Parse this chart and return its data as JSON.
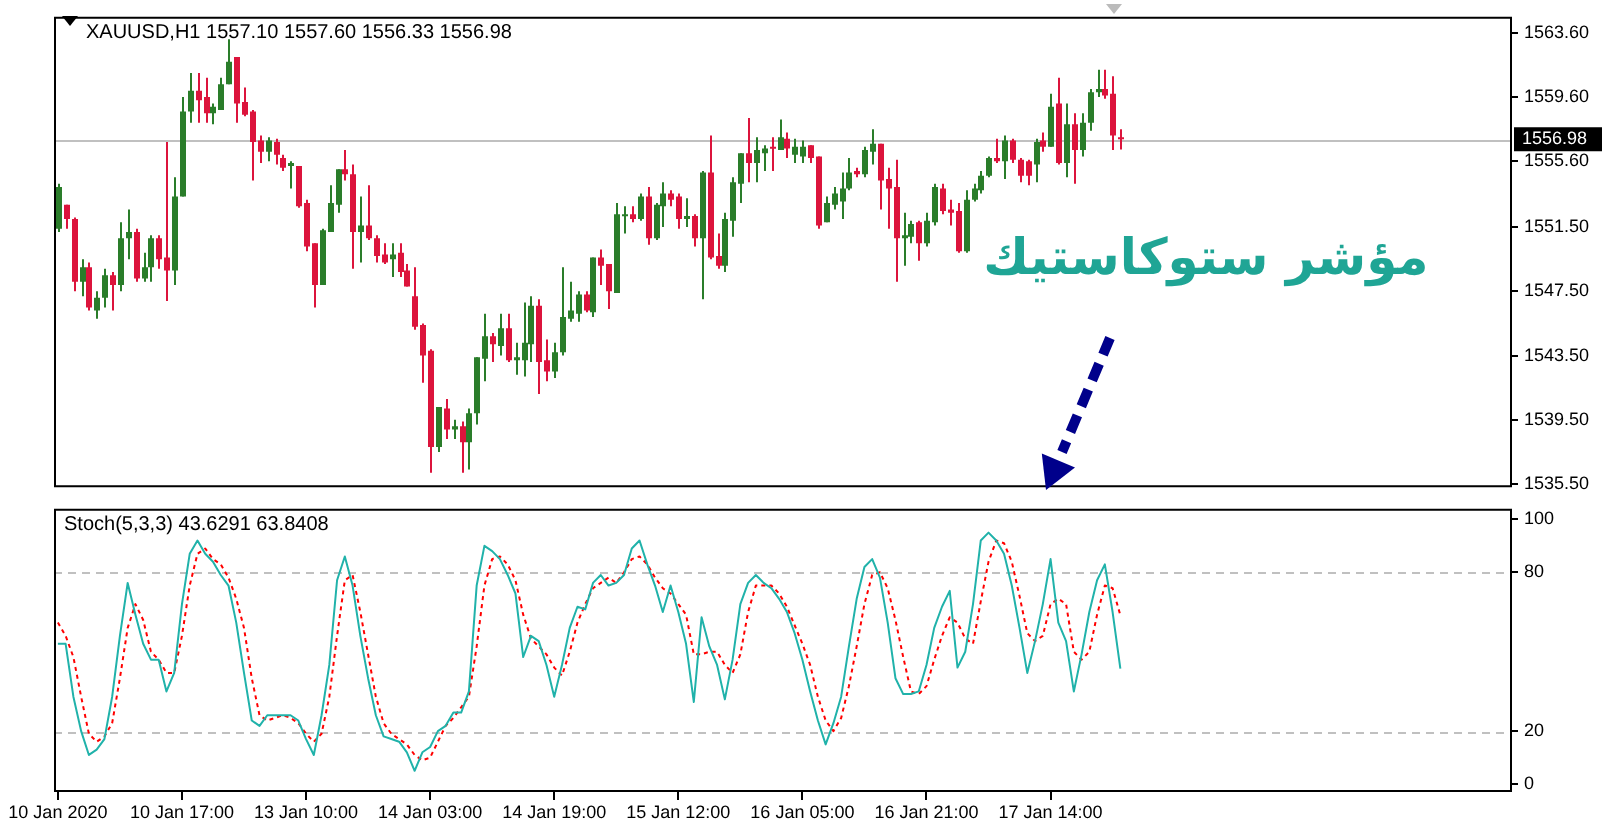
{
  "chart_data": [
    {
      "type": "candlestick",
      "title": "XAUUSD,H1 1557.10 1557.60 1556.33 1556.98",
      "categories": [
        null,
        null,
        null,
        null,
        null,
        null,
        null,
        null,
        null,
        null,
        null,
        null,
        null,
        null,
        null,
        null,
        null,
        null,
        null,
        null,
        null,
        null,
        null,
        null,
        null,
        null,
        null,
        null,
        null,
        null,
        null,
        null,
        null,
        null,
        null,
        null,
        null,
        null,
        null,
        null,
        null,
        null,
        null,
        null,
        null,
        null,
        null,
        null,
        null,
        null,
        null,
        null,
        null,
        null,
        null,
        null,
        null,
        null,
        null,
        null,
        null,
        null,
        null,
        null,
        null,
        null,
        null,
        null,
        null,
        null,
        null,
        null,
        null,
        null,
        null,
        null,
        null,
        null,
        null,
        null,
        null,
        null,
        null,
        null,
        null,
        null,
        null,
        null,
        null,
        null,
        null,
        null,
        null,
        null,
        null,
        null,
        null,
        null,
        null,
        null,
        null,
        null,
        null,
        null,
        null,
        null,
        null,
        null,
        null,
        null,
        null,
        null,
        null,
        null,
        null,
        null,
        null,
        null,
        null,
        null,
        null,
        null,
        null,
        null,
        null,
        null,
        null,
        null,
        null,
        null,
        null,
        null,
        null,
        null,
        null,
        null,
        null,
        null,
        null,
        null,
        null,
        null,
        null,
        null,
        null,
        null,
        null,
        null,
        null,
        null,
        null,
        null,
        null,
        null,
        null,
        null,
        null,
        null,
        null,
        null,
        null,
        null,
        null,
        null,
        null,
        null,
        null,
        null,
        null,
        null,
        null,
        null,
        null,
        null,
        null,
        null,
        null,
        null,
        null,
        null,
        null,
        null,
        null,
        null,
        null,
        null,
        null,
        null
      ],
      "ohlc": [
        [
          1551.4,
          1554.2,
          1551.2,
          1554.0
        ],
        [
          1552.9,
          1552.9,
          1551.4,
          1552.0
        ],
        [
          1552.0,
          1552.1,
          1547.5,
          1548.1
        ],
        [
          1548.1,
          1549.5,
          1547.2,
          1549.0
        ],
        [
          1549.0,
          1549.3,
          1546.3,
          1546.5
        ],
        [
          1546.3,
          1547.5,
          1545.8,
          1547.1
        ],
        [
          1547.1,
          1548.9,
          1546.5,
          1548.5
        ],
        [
          1548.5,
          1548.7,
          1546.3,
          1547.9
        ],
        [
          1547.9,
          1551.8,
          1547.5,
          1550.8
        ],
        [
          1550.8,
          1552.6,
          1549.5,
          1551.2
        ],
        [
          1551.2,
          1551.4,
          1548.1,
          1548.3
        ],
        [
          1548.3,
          1549.9,
          1548.1,
          1549.0
        ],
        [
          1549.0,
          1551.0,
          1548.1,
          1550.8
        ],
        [
          1550.8,
          1551.0,
          1548.9,
          1549.5
        ],
        [
          1549.6,
          1556.8,
          1546.9,
          1548.8
        ],
        [
          1548.8,
          1554.6,
          1547.9,
          1553.4
        ],
        [
          1553.4,
          1559.6,
          1553.4,
          1558.7
        ],
        [
          1558.7,
          1561.1,
          1558.0,
          1560.0
        ],
        [
          1560.0,
          1561.1,
          1558.0,
          1559.4
        ],
        [
          1559.6,
          1560.8,
          1558.0,
          1558.6
        ],
        [
          1558.6,
          1559.2,
          1557.9,
          1559.0
        ],
        [
          1558.8,
          1560.8,
          1558.8,
          1560.4
        ],
        [
          1560.4,
          1563.2,
          1560.4,
          1561.8
        ],
        [
          1562.1,
          1562.1,
          1558.0,
          1559.2
        ],
        [
          1559.3,
          1560.2,
          1558.4,
          1558.5
        ],
        [
          1558.7,
          1558.8,
          1554.4,
          1556.8
        ],
        [
          1556.9,
          1557.2,
          1555.5,
          1556.2
        ],
        [
          1556.2,
          1557.1,
          1555.6,
          1556.9
        ],
        [
          1556.8,
          1557.0,
          1555.4,
          1556.0
        ],
        [
          1555.8,
          1556.0,
          1555.0,
          1555.2
        ],
        [
          1555.3,
          1555.6,
          1553.9,
          1555.5
        ],
        [
          1555.3,
          1555.3,
          1552.7,
          1552.8
        ],
        [
          1553.0,
          1553.2,
          1550.0,
          1550.3
        ],
        [
          1550.5,
          1550.5,
          1546.5,
          1547.9
        ],
        [
          1547.9,
          1551.4,
          1547.9,
          1551.3
        ],
        [
          1551.2,
          1554.1,
          1551.2,
          1553.0
        ],
        [
          1552.9,
          1555.1,
          1552.4,
          1555.1
        ],
        [
          1555.1,
          1556.3,
          1554.4,
          1554.8
        ],
        [
          1554.8,
          1555.4,
          1548.9,
          1551.2
        ],
        [
          1551.2,
          1553.4,
          1549.3,
          1551.6
        ],
        [
          1551.6,
          1554.1,
          1550.7,
          1550.8
        ],
        [
          1550.8,
          1551.0,
          1549.3,
          1549.7
        ],
        [
          1549.8,
          1550.5,
          1549.2,
          1549.3
        ],
        [
          1549.5,
          1550.5,
          1548.4,
          1549.8
        ],
        [
          1549.9,
          1550.5,
          1548.4,
          1548.7
        ],
        [
          1548.8,
          1549.2,
          1547.8,
          1547.8
        ],
        [
          1547.2,
          1549.0,
          1545.1,
          1545.3
        ],
        [
          1545.4,
          1545.5,
          1541.8,
          1543.5
        ],
        [
          1543.8,
          1543.9,
          1536.2,
          1537.8
        ],
        [
          1537.8,
          1540.3,
          1537.5,
          1540.3
        ],
        [
          1540.2,
          1540.8,
          1538.3,
          1538.9
        ],
        [
          1538.9,
          1539.5,
          1538.3,
          1539.1
        ],
        [
          1539.1,
          1539.4,
          1536.2,
          1538.1
        ],
        [
          1538.1,
          1540.2,
          1536.4,
          1539.9
        ],
        [
          1539.9,
          1543.4,
          1539.2,
          1543.4
        ],
        [
          1543.3,
          1546.1,
          1541.9,
          1544.7
        ],
        [
          1544.7,
          1544.9,
          1543.1,
          1544.2
        ],
        [
          1544.1,
          1546.1,
          1543.5,
          1545.2
        ],
        [
          1545.2,
          1546.1,
          1543.1,
          1543.2
        ],
        [
          1543.2,
          1544.3,
          1542.3,
          1543.4
        ],
        [
          1543.2,
          1546.8,
          1542.2,
          1544.3
        ],
        [
          1544.2,
          1547.2,
          1543.1,
          1546.6
        ],
        [
          1546.6,
          1547.0,
          1541.1,
          1543.1
        ],
        [
          1543.2,
          1544.5,
          1541.9,
          1542.5
        ],
        [
          1542.5,
          1544.3,
          1542.1,
          1543.7
        ],
        [
          1543.7,
          1549.0,
          1543.5,
          1545.9
        ],
        [
          1545.8,
          1548.1,
          1545.6,
          1546.3
        ],
        [
          1546.1,
          1547.5,
          1545.6,
          1547.3
        ],
        [
          1547.3,
          1547.5,
          1546.2,
          1546.3
        ],
        [
          1546.2,
          1549.6,
          1545.9,
          1549.6
        ],
        [
          1549.6,
          1550.1,
          1547.9,
          1549.1
        ],
        [
          1549.2,
          1549.2,
          1546.4,
          1547.5
        ],
        [
          1547.4,
          1553.0,
          1547.4,
          1552.3
        ],
        [
          1552.2,
          1552.8,
          1551.1,
          1552.3
        ],
        [
          1552.3,
          1552.8,
          1551.8,
          1552.0
        ],
        [
          1552.0,
          1553.6,
          1551.9,
          1553.4
        ],
        [
          1553.4,
          1554.0,
          1550.4,
          1550.8
        ],
        [
          1550.8,
          1553.0,
          1550.7,
          1552.9
        ],
        [
          1552.8,
          1554.3,
          1551.5,
          1553.6
        ],
        [
          1553.6,
          1553.8,
          1552.8,
          1553.2
        ],
        [
          1553.4,
          1553.6,
          1551.4,
          1552.0
        ],
        [
          1552.0,
          1553.3,
          1551.5,
          1552.2
        ],
        [
          1552.2,
          1552.3,
          1550.3,
          1550.8
        ],
        [
          1550.8,
          1555.0,
          1547.0,
          1554.9
        ],
        [
          1554.9,
          1557.2,
          1549.5,
          1549.6
        ],
        [
          1549.7,
          1551.1,
          1548.9,
          1549.1
        ],
        [
          1549.1,
          1552.4,
          1548.7,
          1552.0
        ],
        [
          1551.9,
          1554.6,
          1550.9,
          1554.3
        ],
        [
          1554.2,
          1556.1,
          1553.0,
          1556.1
        ],
        [
          1556.1,
          1558.3,
          1554.3,
          1555.5
        ],
        [
          1555.5,
          1557.1,
          1554.3,
          1556.3
        ],
        [
          1556.1,
          1556.6,
          1555.0,
          1556.4
        ],
        [
          1556.5,
          1557.1,
          1555.0,
          1556.4
        ],
        [
          1556.3,
          1558.2,
          1556.3,
          1557.1
        ],
        [
          1557.0,
          1557.4,
          1555.8,
          1556.4
        ],
        [
          1556.0,
          1557.0,
          1555.5,
          1556.5
        ],
        [
          1555.9,
          1556.9,
          1555.5,
          1556.5
        ],
        [
          1556.6,
          1556.6,
          1555.5,
          1555.8
        ],
        [
          1555.9,
          1555.9,
          1551.4,
          1551.6
        ],
        [
          1551.8,
          1553.4,
          1551.8,
          1553.0
        ],
        [
          1552.9,
          1554.0,
          1552.6,
          1553.6
        ],
        [
          1553.1,
          1554.9,
          1552.0,
          1553.9
        ],
        [
          1553.9,
          1555.8,
          1553.8,
          1554.9
        ],
        [
          1555.0,
          1555.2,
          1554.6,
          1554.8
        ],
        [
          1554.8,
          1556.5,
          1554.6,
          1556.3
        ],
        [
          1556.2,
          1557.6,
          1555.4,
          1556.7
        ],
        [
          1556.7,
          1556.7,
          1552.6,
          1554.4
        ],
        [
          1554.5,
          1555.2,
          1551.4,
          1553.9
        ],
        [
          1554.0,
          1555.7,
          1548.1,
          1550.8
        ],
        [
          1550.8,
          1552.4,
          1549.1,
          1551.0
        ],
        [
          1550.9,
          1551.9,
          1550.5,
          1551.7
        ],
        [
          1551.8,
          1551.9,
          1549.4,
          1550.5
        ],
        [
          1550.5,
          1552.4,
          1550.3,
          1551.9
        ],
        [
          1551.8,
          1554.2,
          1551.6,
          1554.0
        ],
        [
          1553.9,
          1554.2,
          1552.3,
          1552.5
        ],
        [
          1552.6,
          1553.2,
          1551.6,
          1552.4
        ],
        [
          1552.5,
          1553.0,
          1549.9,
          1550.0
        ],
        [
          1550.0,
          1553.8,
          1549.9,
          1553.2
        ],
        [
          1553.2,
          1554.2,
          1553.1,
          1553.9
        ],
        [
          1553.8,
          1555.0,
          1553.6,
          1554.7
        ],
        [
          1554.7,
          1555.9,
          1554.6,
          1555.8
        ],
        [
          1555.8,
          1557.0,
          1555.5,
          1555.6
        ],
        [
          1555.6,
          1557.2,
          1554.5,
          1556.9
        ],
        [
          1556.9,
          1557.0,
          1555.5,
          1555.7
        ],
        [
          1555.7,
          1555.8,
          1554.3,
          1554.7
        ],
        [
          1555.6,
          1555.7,
          1554.1,
          1554.7
        ],
        [
          1555.4,
          1557.0,
          1554.3,
          1556.8
        ],
        [
          1556.9,
          1557.4,
          1556.2,
          1556.5
        ],
        [
          1556.5,
          1559.8,
          1556.5,
          1559.0
        ],
        [
          1559.2,
          1560.8,
          1555.4,
          1555.5
        ],
        [
          1555.5,
          1559.2,
          1554.6,
          1557.9
        ],
        [
          1557.9,
          1558.6,
          1554.2,
          1556.3
        ],
        [
          1556.3,
          1558.6,
          1555.9,
          1558.0
        ],
        [
          1558.0,
          1560.1,
          1557.5,
          1559.9
        ],
        [
          1559.9,
          1561.3,
          1559.6,
          1560.1
        ],
        [
          1560.1,
          1561.3,
          1559.5,
          1559.7
        ],
        [
          1559.8,
          1560.9,
          1556.3,
          1557.2
        ],
        [
          1557.1,
          1557.6,
          1556.33,
          1556.98
        ],
        null,
        null,
        null,
        null,
        null,
        null,
        null,
        null,
        null,
        null,
        null,
        null,
        null,
        null,
        null,
        null,
        null,
        null,
        null,
        null,
        null,
        null,
        null,
        null,
        null,
        null,
        null,
        null,
        null,
        null,
        null,
        null,
        null,
        null,
        null,
        null,
        null,
        null,
        null,
        null,
        null,
        null,
        null,
        null,
        null,
        null,
        null,
        null,
        null,
        null
      ],
      "colors": [
        "#2a7d2a",
        "#dc143c",
        "#dc143c",
        "#2a7d2a",
        "#dc143c",
        "#2a7d2a",
        "#2a7d2a",
        "#dc143c",
        "#2a7d2a",
        "#2a7d2a",
        "#dc143c",
        "#2a7d2a",
        "#2a7d2a",
        "#dc143c",
        "#dc143c",
        "#2a7d2a",
        "#2a7d2a",
        "#2a7d2a",
        "#dc143c",
        "#dc143c",
        "#2a7d2a",
        "#2a7d2a",
        "#2a7d2a",
        "#dc143c",
        "#dc143c",
        "#dc143c",
        "#dc143c",
        "#2a7d2a",
        "#dc143c",
        "#dc143c",
        "#2a7d2a",
        "#dc143c",
        "#dc143c",
        "#dc143c",
        "#2a7d2a",
        "#2a7d2a",
        "#2a7d2a",
        "#dc143c",
        "#dc143c",
        "#2a7d2a",
        "#dc143c",
        "#dc143c",
        "#dc143c",
        "#2a7d2a",
        "#dc143c",
        "#dc143c",
        "#dc143c",
        "#dc143c",
        "#dc143c",
        "#2a7d2a",
        "#dc143c",
        "#2a7d2a",
        "#dc143c",
        "#2a7d2a",
        "#2a7d2a",
        "#2a7d2a",
        "#dc143c",
        "#2a7d2a",
        "#dc143c",
        "#2a7d2a",
        "#2a7d2a",
        "#2a7d2a",
        "#dc143c",
        "#dc143c",
        "#2a7d2a",
        "#2a7d2a",
        "#2a7d2a",
        "#2a7d2a",
        "#dc143c",
        "#2a7d2a",
        "#dc143c",
        "#dc143c",
        "#2a7d2a",
        "#2a7d2a",
        "#dc143c",
        "#2a7d2a",
        "#dc143c",
        "#2a7d2a",
        "#2a7d2a",
        "#dc143c",
        "#dc143c",
        "#2a7d2a",
        "#dc143c",
        "#2a7d2a",
        "#dc143c",
        "#dc143c",
        "#2a7d2a",
        "#2a7d2a",
        "#2a7d2a",
        "#dc143c",
        "#2a7d2a",
        "#2a7d2a",
        "#dc143c",
        "#2a7d2a",
        "#dc143c",
        "#2a7d2a",
        "#2a7d2a",
        "#dc143c",
        "#dc143c",
        "#2a7d2a",
        "#2a7d2a",
        "#2a7d2a",
        "#2a7d2a",
        "#dc143c",
        "#2a7d2a",
        "#2a7d2a",
        "#dc143c",
        "#dc143c",
        "#dc143c",
        "#2a7d2a",
        "#2a7d2a",
        "#dc143c",
        "#2a7d2a",
        "#2a7d2a",
        "#dc143c",
        "#dc143c",
        "#dc143c",
        "#2a7d2a",
        "#2a7d2a",
        "#2a7d2a",
        "#2a7d2a",
        "#dc143c",
        "#2a7d2a",
        "#dc143c",
        "#dc143c",
        "#dc143c",
        "#2a7d2a",
        "#dc143c",
        "#2a7d2a",
        "#dc143c",
        "#2a7d2a",
        "#dc143c",
        "#2a7d2a",
        "#2a7d2a",
        "#2a7d2a",
        "#dc143c",
        "#dc143c",
        "#dc143c",
        null,
        null,
        null,
        null,
        null,
        null,
        null,
        null,
        null,
        null,
        null,
        null,
        null,
        null,
        null,
        null,
        null,
        null,
        null,
        null,
        null,
        null,
        null,
        null,
        null,
        null,
        null,
        null,
        null,
        null,
        null,
        null,
        null,
        null,
        null,
        null,
        null,
        null,
        null,
        null,
        null,
        null,
        null,
        null,
        null,
        null,
        null,
        null,
        null,
        null
      ],
      "ylim": [
        1535.3,
        1564.6
      ],
      "yticks": [
        {
          "value": 1535.5,
          "label": "1535.50"
        },
        {
          "value": 1539.5,
          "label": "1539.50"
        },
        {
          "value": 1543.5,
          "label": "1543.50"
        },
        {
          "value": 1547.5,
          "label": "1547.50"
        },
        {
          "value": 1551.5,
          "label": "1551.50"
        },
        {
          "value": 1555.6,
          "label": "1555.60"
        },
        {
          "value": 1559.6,
          "label": "1559.60"
        },
        {
          "value": 1563.6,
          "label": "1563.60"
        }
      ],
      "tick_labels": "y",
      "ref_lines": [
        {
          "axis": "y",
          "value": 1556.98,
          "label": "1556.98",
          "color": "#c0c0c0"
        }
      ],
      "annotations": [
        "مؤشر ستوكاستيك"
      ]
    },
    {
      "type": "line",
      "title": "Stoch(5,3,3) 43.6291 63.8408",
      "categories": [
        "10 Jan 2020",
        null,
        null,
        null,
        null,
        null,
        null,
        null,
        null,
        null,
        null,
        null,
        null,
        null,
        null,
        null,
        "10 Jan 17:00",
        null,
        null,
        null,
        null,
        null,
        null,
        null,
        null,
        null,
        null,
        null,
        null,
        null,
        null,
        null,
        "13 Jan 10:00",
        null,
        null,
        null,
        null,
        null,
        null,
        null,
        null,
        null,
        null,
        null,
        null,
        null,
        null,
        null,
        "14 Jan 03:00",
        null,
        null,
        null,
        null,
        null,
        null,
        null,
        null,
        null,
        null,
        null,
        null,
        null,
        null,
        null,
        "14 Jan 19:00",
        null,
        null,
        null,
        null,
        null,
        null,
        null,
        null,
        null,
        null,
        null,
        null,
        null,
        null,
        null,
        "15 Jan 12:00",
        null,
        null,
        null,
        null,
        null,
        null,
        null,
        null,
        null,
        null,
        null,
        null,
        null,
        null,
        null,
        "16 Jan 05:00",
        null,
        null,
        null,
        null,
        null,
        null,
        null,
        null,
        null,
        null,
        null,
        null,
        null,
        null,
        null,
        "16 Jan 21:00",
        null,
        null,
        null,
        null,
        null,
        null,
        null,
        null,
        null,
        null,
        null,
        null,
        null,
        null,
        null,
        "17 Jan 14:00",
        null,
        null,
        null,
        null,
        null,
        null,
        null,
        null,
        null,
        null,
        null,
        null,
        null,
        null,
        null,
        null,
        null,
        null,
        null,
        null,
        null,
        null,
        null,
        null,
        null,
        null,
        null,
        null,
        null,
        null,
        null,
        null,
        null,
        null,
        null,
        null,
        null,
        null,
        null,
        null,
        null,
        null,
        null,
        null,
        null,
        null,
        null,
        null,
        null,
        null,
        null,
        null,
        null,
        null,
        null,
        null,
        null,
        null,
        null
      ],
      "series": [
        {
          "color": "#20b2aa",
          "line_style": "solid",
          "values": [
            53,
            53,
            33,
            20,
            11,
            13,
            17,
            33,
            56,
            76,
            64,
            53,
            47,
            47,
            35,
            42,
            68,
            87,
            92,
            87,
            84,
            79,
            75,
            61,
            42,
            24,
            22,
            26,
            26,
            26,
            26,
            24,
            17,
            11,
            26,
            45,
            77,
            86,
            75,
            56,
            40,
            26,
            18,
            17,
            16,
            12,
            5,
            12,
            14,
            20,
            22,
            27,
            27,
            35,
            75,
            90,
            88,
            85,
            79,
            72,
            48,
            56,
            54,
            45,
            33,
            45,
            59,
            67,
            66,
            76,
            79,
            75,
            76,
            79,
            89,
            92,
            83,
            75,
            65,
            75,
            65,
            53,
            31,
            63,
            52,
            45,
            32,
            47,
            68,
            76,
            79,
            76,
            74,
            70,
            65,
            57,
            47,
            35,
            24,
            15,
            23,
            33,
            52,
            70,
            82,
            85,
            78,
            61,
            40,
            34,
            34,
            35,
            45,
            59,
            67,
            73,
            44,
            50,
            68,
            92,
            95,
            92,
            87,
            75,
            59,
            42,
            54,
            68,
            85,
            61,
            54,
            35,
            49,
            65,
            77,
            83,
            65,
            43.6,
            null,
            null,
            null,
            null,
            null,
            null,
            null,
            null,
            null,
            null,
            null,
            null,
            null,
            null,
            null,
            null,
            null,
            null,
            null,
            null,
            null,
            null,
            null,
            null,
            null,
            null,
            null,
            null,
            null,
            null,
            null,
            null,
            null,
            null,
            null,
            null,
            null,
            null,
            null,
            null,
            null,
            null,
            null,
            null,
            null,
            null,
            null,
            null,
            null,
            null
          ]
        },
        {
          "color": "#ff0000",
          "line_style": "dotted",
          "values": [
            61,
            56,
            48,
            33,
            19,
            16,
            18,
            23,
            40,
            59,
            68,
            62,
            50,
            47,
            42,
            42,
            56,
            75,
            87,
            89,
            85,
            83,
            78,
            70,
            59,
            40,
            26,
            24,
            25,
            26,
            25,
            23,
            19,
            16,
            19,
            33,
            56,
            77,
            79,
            65,
            49,
            33,
            23,
            19,
            17,
            15,
            11,
            9,
            10,
            16,
            22,
            25,
            29,
            33,
            52,
            75,
            85,
            86,
            83,
            77,
            64,
            55,
            52,
            49,
            44,
            41,
            50,
            61,
            68,
            74,
            76,
            78,
            76,
            80,
            85,
            86,
            83,
            78,
            74,
            72,
            68,
            64,
            49,
            49,
            50,
            50,
            45,
            42,
            49,
            65,
            75,
            75,
            75,
            72,
            67,
            60,
            53,
            45,
            33,
            24,
            20,
            25,
            37,
            52,
            68,
            79,
            80,
            74,
            62,
            48,
            35,
            34,
            37,
            47,
            56,
            63,
            61,
            55,
            53,
            69,
            84,
            92,
            91,
            84,
            71,
            57,
            54,
            56,
            68,
            70,
            68,
            50,
            47,
            50,
            64,
            75,
            74,
            63.8,
            null,
            null,
            null,
            null,
            null,
            null,
            null,
            null,
            null,
            null,
            null,
            null,
            null,
            null,
            null,
            null,
            null,
            null,
            null,
            null,
            null,
            null,
            null,
            null,
            null,
            null,
            null,
            null,
            null,
            null,
            null,
            null,
            null,
            null,
            null,
            null,
            null,
            null,
            null,
            null,
            null,
            null,
            null,
            null,
            null,
            null,
            null,
            null,
            null,
            null
          ]
        }
      ],
      "ylim": [
        -3,
        104
      ],
      "yticks": [
        0,
        20,
        80,
        100
      ],
      "ref_lines": [
        {
          "axis": "y",
          "value": 20,
          "color": "#c0c0c0",
          "line_style": "dashed"
        },
        {
          "axis": "y",
          "value": 80,
          "color": "#c0c0c0",
          "line_style": "dashed"
        }
      ],
      "marker": "none"
    }
  ]
}
